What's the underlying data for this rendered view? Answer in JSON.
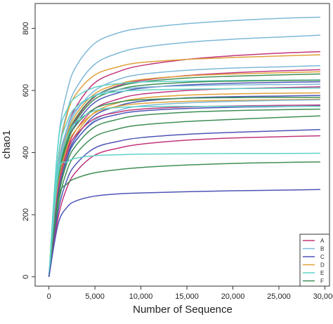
{
  "chart_data": {
    "type": "line",
    "xlabel": "Number of Sequence",
    "ylabel": "chao1",
    "xlim": [
      -1500,
      30500
    ],
    "ylim": [
      -30,
      880
    ],
    "xticks": [
      0,
      5000,
      10000,
      15000,
      20000,
      25000,
      30000
    ],
    "xtick_labels": [
      "0",
      "5,000",
      "10,000",
      "15,000",
      "20,000",
      "25,000",
      "30,000"
    ],
    "yticks": [
      0,
      200,
      400,
      600,
      800
    ],
    "ytick_labels": [
      "0",
      "200",
      "400",
      "600",
      "800"
    ],
    "grid": false,
    "legend_position": "bottom-right",
    "legend": [
      {
        "label": "A",
        "color": "#c2357c"
      },
      {
        "label": "B",
        "color": "#7fb8d8"
      },
      {
        "label": "C",
        "color": "#4d55b5"
      },
      {
        "label": "D",
        "color": "#e0a13a"
      },
      {
        "label": "E",
        "color": "#5fd3c8"
      },
      {
        "label": "F",
        "color": "#3f8f56"
      }
    ],
    "series": [
      {
        "group": "B",
        "color": "#7fb8d8",
        "x": [
          0,
          1000,
          2000,
          3000,
          5000,
          7500,
          10000,
          15000,
          20000,
          25000,
          29500
        ],
        "y": [
          0,
          430,
          600,
          680,
          752,
          785,
          800,
          815,
          825,
          832,
          836
        ]
      },
      {
        "group": "B",
        "color": "#7fb8d8",
        "x": [
          0,
          1000,
          2000,
          3000,
          5000,
          7500,
          10000,
          15000,
          20000,
          25000,
          29500
        ],
        "y": [
          0,
          380,
          535,
          610,
          685,
          720,
          738,
          755,
          765,
          772,
          778
        ]
      },
      {
        "group": "A",
        "color": "#c2357c",
        "x": [
          0,
          1000,
          2000,
          3000,
          5000,
          7500,
          10000,
          15000,
          20000,
          25000,
          29500
        ],
        "y": [
          0,
          340,
          480,
          550,
          625,
          660,
          680,
          700,
          712,
          720,
          725
        ]
      },
      {
        "group": "D",
        "color": "#e0a13a",
        "x": [
          0,
          1000,
          2000,
          3000,
          5000,
          7500,
          10000,
          15000,
          20000,
          25000,
          29500
        ],
        "y": [
          0,
          370,
          525,
          590,
          650,
          676,
          690,
          700,
          706,
          711,
          715
        ]
      },
      {
        "group": "B",
        "color": "#7fb8d8",
        "x": [
          0,
          1000,
          2000,
          3000,
          5000,
          7500,
          10000,
          15000,
          20000,
          25000,
          29500
        ],
        "y": [
          0,
          330,
          470,
          535,
          600,
          635,
          652,
          665,
          672,
          676,
          680
        ]
      },
      {
        "group": "A",
        "color": "#c2357c",
        "x": [
          0,
          1000,
          2000,
          3000,
          5000,
          7500,
          10000,
          15000,
          20000,
          25000,
          29500
        ],
        "y": [
          0,
          300,
          440,
          510,
          580,
          615,
          632,
          648,
          657,
          663,
          667
        ]
      },
      {
        "group": "D",
        "color": "#e0a13a",
        "x": [
          0,
          1000,
          2000,
          3000,
          5000,
          7500,
          10000,
          15000,
          20000,
          25000,
          29500
        ],
        "y": [
          0,
          320,
          460,
          525,
          590,
          620,
          635,
          647,
          653,
          657,
          660
        ]
      },
      {
        "group": "F",
        "color": "#3f8f56",
        "x": [
          0,
          1000,
          2000,
          3000,
          5000,
          7500,
          10000,
          15000,
          20000,
          25000,
          29500
        ],
        "y": [
          0,
          310,
          450,
          515,
          582,
          612,
          627,
          640,
          646,
          650,
          653
        ]
      },
      {
        "group": "E",
        "color": "#5fd3c8",
        "x": [
          0,
          1000,
          2000,
          3000,
          5000,
          7500,
          10000,
          15000,
          20000,
          25000,
          29500
        ],
        "y": [
          0,
          430,
          540,
          580,
          610,
          622,
          627,
          630,
          632,
          633,
          634
        ]
      },
      {
        "group": "F",
        "color": "#3f8f56",
        "x": [
          0,
          1000,
          2000,
          3000,
          5000,
          7500,
          10000,
          15000,
          20000,
          25000,
          29500
        ],
        "y": [
          0,
          300,
          440,
          505,
          572,
          602,
          616,
          626,
          630,
          632,
          633
        ]
      },
      {
        "group": "C",
        "color": "#4d55b5",
        "x": [
          0,
          1000,
          2000,
          3000,
          5000,
          7500,
          10000,
          15000,
          20000,
          25000,
          29500
        ],
        "y": [
          0,
          290,
          430,
          495,
          562,
          592,
          607,
          618,
          623,
          626,
          628
        ]
      },
      {
        "group": "B",
        "color": "#7fb8d8",
        "x": [
          0,
          1000,
          2000,
          3000,
          5000,
          7500,
          10000,
          15000,
          20000,
          25000,
          29500
        ],
        "y": [
          0,
          350,
          480,
          540,
          585,
          602,
          610,
          615,
          618,
          619,
          620
        ]
      },
      {
        "group": "A",
        "color": "#c2357c",
        "x": [
          0,
          1000,
          2000,
          3000,
          5000,
          7500,
          10000,
          15000,
          20000,
          25000,
          29500
        ],
        "y": [
          0,
          280,
          410,
          475,
          542,
          572,
          588,
          600,
          606,
          609,
          612
        ]
      },
      {
        "group": "E",
        "color": "#5fd3c8",
        "x": [
          0,
          1000,
          2000,
          3000,
          5000,
          7500,
          10000,
          15000,
          20000,
          25000,
          29500
        ],
        "y": [
          0,
          380,
          500,
          548,
          583,
          596,
          601,
          604,
          606,
          607,
          608
        ]
      },
      {
        "group": "D",
        "color": "#e0a13a",
        "x": [
          0,
          1000,
          2000,
          3000,
          5000,
          7500,
          10000,
          15000,
          20000,
          25000,
          29500
        ],
        "y": [
          0,
          270,
          400,
          462,
          530,
          560,
          575,
          585,
          589,
          591,
          592
        ]
      },
      {
        "group": "C",
        "color": "#4d55b5",
        "x": [
          0,
          1000,
          2000,
          3000,
          5000,
          7500,
          10000,
          15000,
          20000,
          25000,
          29500
        ],
        "y": [
          0,
          260,
          390,
          452,
          520,
          550,
          565,
          576,
          580,
          582,
          584
        ]
      },
      {
        "group": "F",
        "color": "#3f8f56",
        "x": [
          0,
          1000,
          2000,
          3000,
          5000,
          7500,
          10000,
          15000,
          20000,
          25000,
          29500
        ],
        "y": [
          0,
          300,
          430,
          490,
          542,
          562,
          570,
          575,
          577,
          578,
          578
        ]
      },
      {
        "group": "D",
        "color": "#e0a13a",
        "x": [
          0,
          1000,
          2000,
          3000,
          5000,
          7500,
          10000,
          15000,
          20000,
          25000,
          29500
        ],
        "y": [
          0,
          290,
          420,
          475,
          528,
          549,
          558,
          565,
          568,
          570,
          572
        ]
      },
      {
        "group": "B",
        "color": "#7fb8d8",
        "x": [
          0,
          1000,
          2000,
          3000,
          5000,
          7500,
          10000,
          15000,
          20000,
          25000,
          29500
        ],
        "y": [
          0,
          250,
          380,
          440,
          505,
          535,
          550,
          560,
          565,
          568,
          570
        ]
      },
      {
        "group": "A",
        "color": "#c2357c",
        "x": [
          0,
          1000,
          2000,
          3000,
          5000,
          7500,
          10000,
          15000,
          20000,
          25000,
          29500
        ],
        "y": [
          0,
          280,
          405,
          458,
          510,
          530,
          540,
          547,
          550,
          552,
          553
        ]
      },
      {
        "group": "C",
        "color": "#4d55b5",
        "x": [
          0,
          1000,
          2000,
          3000,
          5000,
          7500,
          10000,
          15000,
          20000,
          25000,
          29500
        ],
        "y": [
          0,
          260,
          385,
          442,
          500,
          523,
          534,
          542,
          546,
          548,
          550
        ]
      },
      {
        "group": "E",
        "color": "#5fd3c8",
        "x": [
          0,
          1000,
          2000,
          3000,
          5000,
          7500,
          10000,
          15000,
          20000,
          25000,
          29500
        ],
        "y": [
          0,
          330,
          450,
          500,
          535,
          545,
          548,
          549,
          549,
          549,
          549
        ]
      },
      {
        "group": "F",
        "color": "#3f8f56",
        "x": [
          0,
          1000,
          2000,
          3000,
          5000,
          7500,
          10000,
          15000,
          20000,
          25000,
          29500
        ],
        "y": [
          0,
          250,
          370,
          425,
          483,
          507,
          520,
          530,
          535,
          538,
          540
        ]
      },
      {
        "group": "F",
        "color": "#3f8f56",
        "x": [
          0,
          1000,
          2000,
          3000,
          5000,
          7500,
          10000,
          15000,
          20000,
          25000,
          29500
        ],
        "y": [
          0,
          230,
          345,
          398,
          452,
          476,
          489,
          500,
          507,
          513,
          518
        ]
      },
      {
        "group": "C",
        "color": "#4d55b5",
        "x": [
          0,
          1000,
          2000,
          3000,
          5000,
          7500,
          10000,
          15000,
          20000,
          25000,
          29500
        ],
        "y": [
          0,
          210,
          315,
          365,
          415,
          436,
          448,
          459,
          465,
          470,
          474
        ]
      },
      {
        "group": "A",
        "color": "#c2357c",
        "x": [
          0,
          1000,
          2000,
          3000,
          5000,
          7500,
          10000,
          15000,
          20000,
          25000,
          29500
        ],
        "y": [
          0,
          190,
          290,
          340,
          392,
          414,
          427,
          440,
          447,
          451,
          454
        ]
      },
      {
        "group": "F",
        "color": "#3f8f56",
        "x": [
          0,
          1000,
          2000,
          3000,
          5000,
          7500,
          10000,
          15000,
          20000,
          25000,
          29500
        ],
        "y": [
          0,
          250,
          300,
          318,
          335,
          345,
          352,
          360,
          365,
          368,
          370
        ]
      },
      {
        "group": "E",
        "color": "#5fd3c8",
        "x": [
          0,
          1000,
          2000,
          3000,
          5000,
          7500,
          10000,
          15000,
          20000,
          25000,
          29500
        ],
        "y": [
          0,
          330,
          370,
          382,
          390,
          393,
          395,
          396,
          397,
          397,
          398
        ]
      },
      {
        "group": "C",
        "color": "#4d55b5",
        "x": [
          0,
          1000,
          2000,
          3000,
          5000,
          7500,
          10000,
          15000,
          20000,
          25000,
          29500
        ],
        "y": [
          0,
          170,
          225,
          245,
          260,
          267,
          270,
          274,
          277,
          279,
          281
        ]
      }
    ]
  }
}
